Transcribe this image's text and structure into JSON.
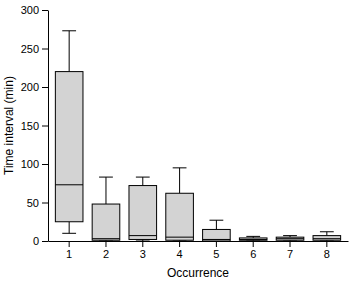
{
  "chart_data": {
    "type": "box",
    "x_label": "Occurrence",
    "y_label": "Time interval (min)",
    "categories": [
      "1",
      "2",
      "3",
      "4",
      "5",
      "6",
      "7",
      "8"
    ],
    "min": [
      10,
      0,
      0,
      0,
      0,
      0,
      0,
      0
    ],
    "q1": [
      25,
      1,
      2,
      1,
      0,
      1,
      1,
      1
    ],
    "median": [
      73,
      3,
      7,
      5,
      2,
      2,
      3,
      3
    ],
    "q3": [
      220,
      48,
      72,
      62,
      15,
      4,
      5,
      7
    ],
    "max": [
      273,
      83,
      83,
      95,
      27,
      6,
      7,
      12
    ],
    "color": "#d3d3d3",
    "ylim": [
      0,
      300
    ],
    "yticks": [
      0,
      50,
      100,
      150,
      200,
      250,
      300
    ],
    "grid": false
  }
}
